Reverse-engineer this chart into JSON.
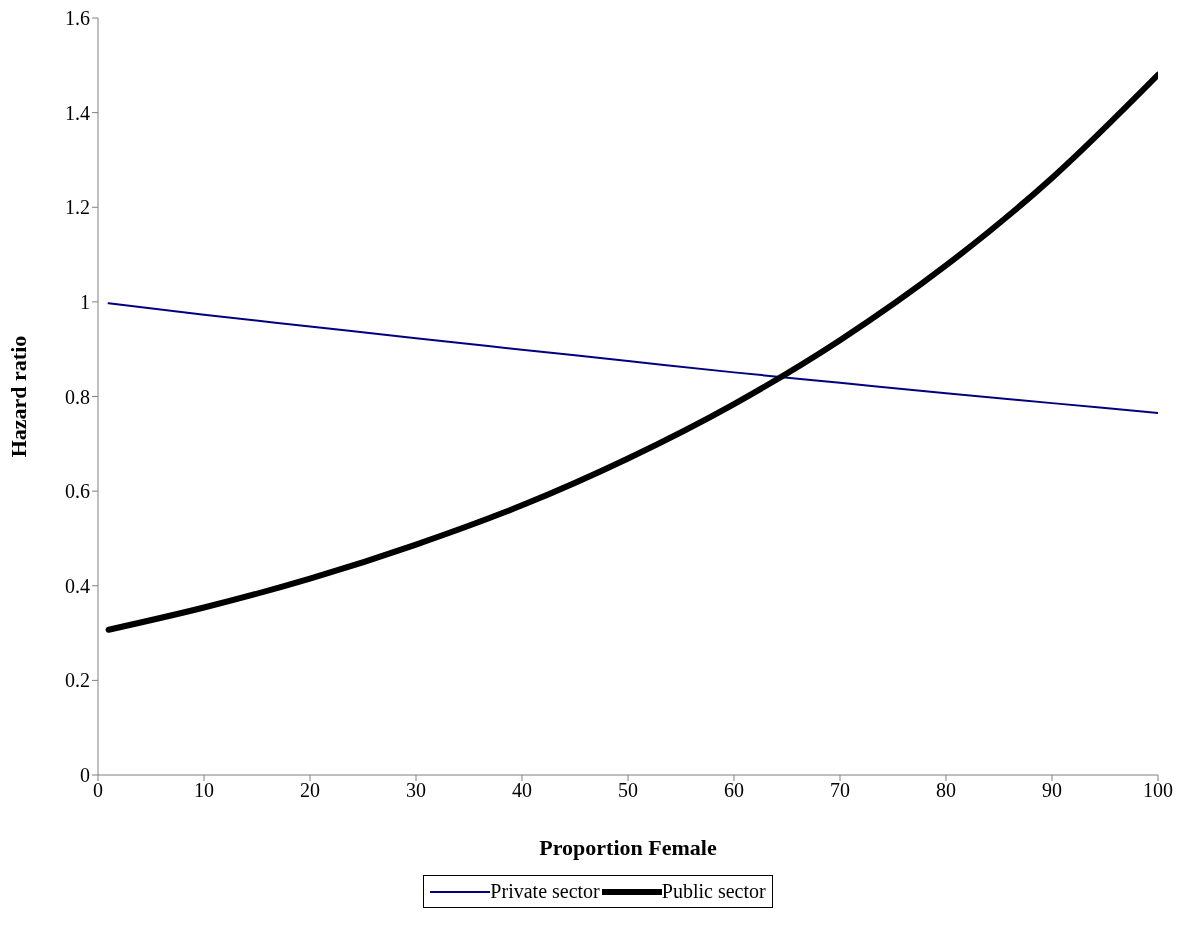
{
  "chart_data": {
    "type": "line",
    "xlabel": "Proportion Female",
    "ylabel": "Hazard ratio",
    "x": [
      1,
      10,
      20,
      30,
      40,
      50,
      60,
      70,
      80,
      90,
      100
    ],
    "series": [
      {
        "name": "Private sector",
        "color": "#000080",
        "values": [
          0.997,
          0.973,
          0.948,
          0.923,
          0.899,
          0.875,
          0.851,
          0.829,
          0.807,
          0.786,
          0.765
        ]
      },
      {
        "name": "Public sector",
        "color": "#000000",
        "values": [
          0.307,
          0.354,
          0.415,
          0.487,
          0.57,
          0.669,
          0.784,
          0.919,
          1.077,
          1.262,
          1.48
        ]
      }
    ],
    "xlim": [
      0,
      100
    ],
    "xticks": [
      0,
      10,
      20,
      30,
      40,
      50,
      60,
      70,
      80,
      90,
      100
    ],
    "ylim": [
      0,
      1.6
    ],
    "yticks": [
      0,
      0.2,
      0.4,
      0.6,
      0.8,
      1,
      1.2,
      1.4,
      1.6
    ],
    "grid": false,
    "legend": "bottom",
    "marker": "none",
    "line_style": "solid"
  }
}
